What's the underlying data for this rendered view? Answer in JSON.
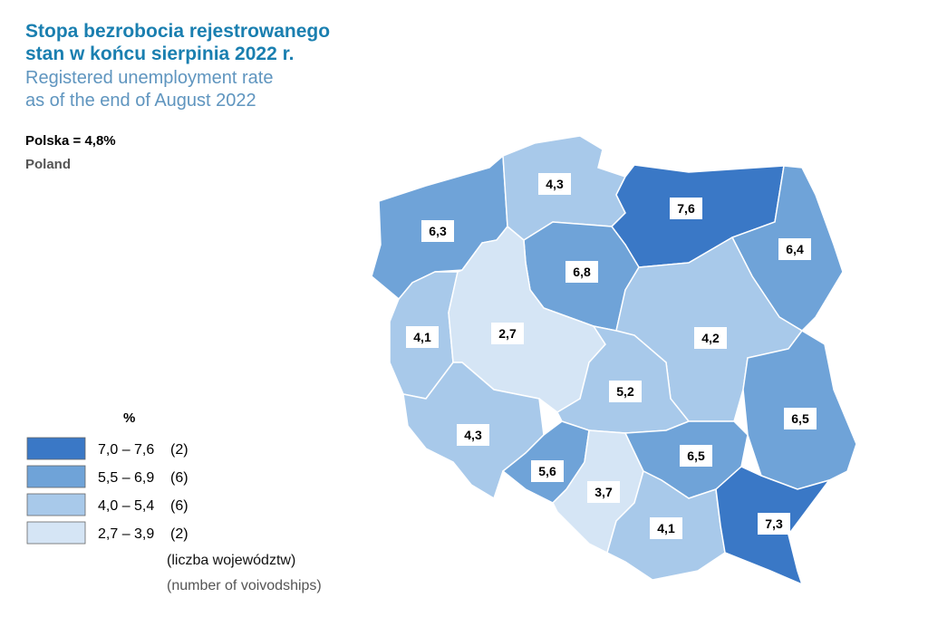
{
  "header": {
    "title_pl_1": "Stopa bezrobocia rejestrowanego",
    "title_pl_2": "stan w końcu sierpinia 2022 r.",
    "title_en_1": "Registered unemployment rate",
    "title_en_2": "as of the end of August 2022",
    "country_pl": "Polska = 4,8%",
    "country_en": "Poland"
  },
  "legend": {
    "unit": "%",
    "items": [
      {
        "range": "7,0 – 7,6",
        "count": "(2)",
        "color": "#3a78c6"
      },
      {
        "range": "5,5 – 6,9",
        "count": "(6)",
        "color": "#6fa3d8"
      },
      {
        "range": "4,0 – 5,4",
        "count": "(6)",
        "color": "#a8c9ea"
      },
      {
        "range": "2,7 – 3,9",
        "count": "(2)",
        "color": "#d5e5f5"
      }
    ],
    "note_pl": "(liczba województw)",
    "note_en": "(number of voivodships)"
  },
  "regions": [
    {
      "label": "6,3",
      "color": "#6fa3d8"
    },
    {
      "label": "4,3",
      "color": "#a8c9ea"
    },
    {
      "label": "7,6",
      "color": "#3a78c6"
    },
    {
      "label": "6,4",
      "color": "#6fa3d8"
    },
    {
      "label": "6,8",
      "color": "#6fa3d8"
    },
    {
      "label": "4,1",
      "color": "#a8c9ea"
    },
    {
      "label": "2,7",
      "color": "#d5e5f5"
    },
    {
      "label": "4,2",
      "color": "#a8c9ea"
    },
    {
      "label": "5,2",
      "color": "#a8c9ea"
    },
    {
      "label": "6,5",
      "color": "#6fa3d8"
    },
    {
      "label": "4,3",
      "color": "#a8c9ea"
    },
    {
      "label": "5,6",
      "color": "#6fa3d8"
    },
    {
      "label": "3,7",
      "color": "#d5e5f5"
    },
    {
      "label": "6,5",
      "color": "#6fa3d8"
    },
    {
      "label": "4,1",
      "color": "#a8c9ea"
    },
    {
      "label": "7,3",
      "color": "#3a78c6"
    }
  ]
}
